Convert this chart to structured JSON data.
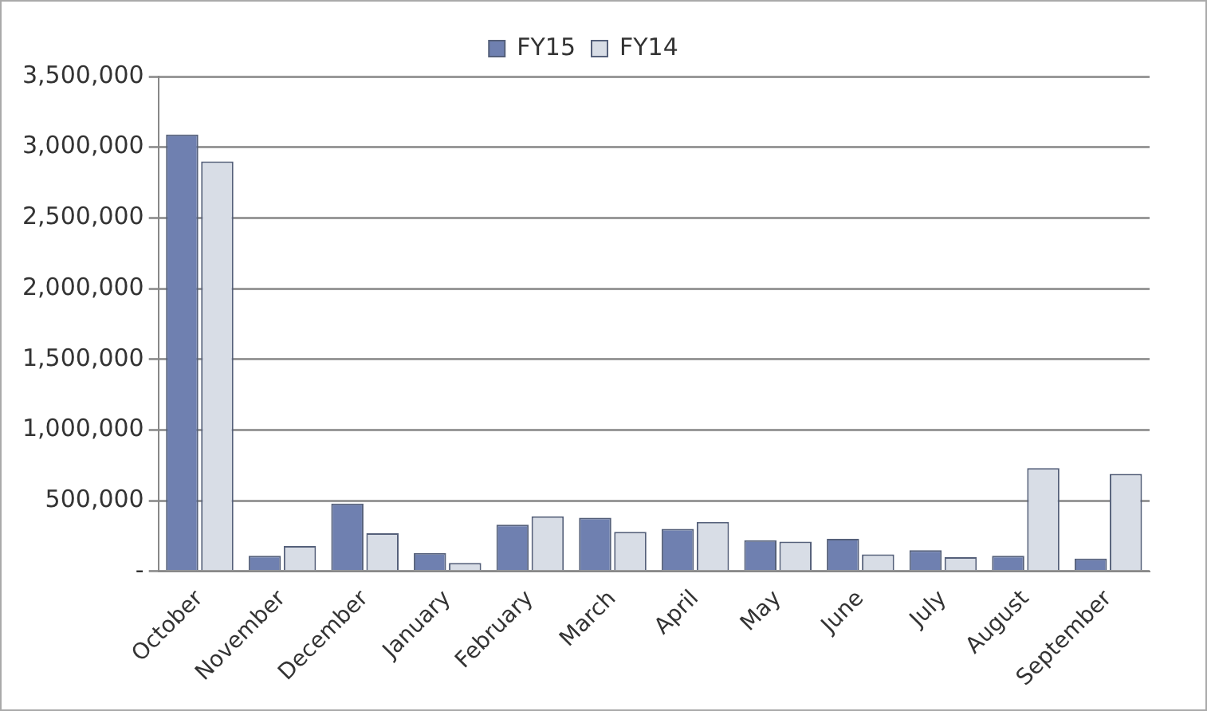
{
  "chart_data": {
    "type": "bar",
    "categories": [
      "October",
      "November",
      "December",
      "January",
      "February",
      "March",
      "April",
      "May",
      "June",
      "July",
      "August",
      "September"
    ],
    "series": [
      {
        "name": "FY15",
        "color": "#6f80b0",
        "values": [
          3090000,
          110000,
          480000,
          130000,
          330000,
          380000,
          300000,
          220000,
          230000,
          150000,
          110000,
          90000
        ]
      },
      {
        "name": "FY14",
        "color": "#d8dde6",
        "values": [
          2900000,
          180000,
          270000,
          60000,
          390000,
          280000,
          350000,
          210000,
          120000,
          100000,
          730000,
          690000
        ]
      }
    ],
    "ylim": [
      0,
      3500000
    ],
    "yticks": [
      {
        "value": 0,
        "label": "-"
      },
      {
        "value": 500000,
        "label": "500,000"
      },
      {
        "value": 1000000,
        "label": "1,000,000"
      },
      {
        "value": 1500000,
        "label": "1,500,000"
      },
      {
        "value": 2000000,
        "label": "2,000,000"
      },
      {
        "value": 2500000,
        "label": "2,500,000"
      },
      {
        "value": 3000000,
        "label": "3,000,000"
      },
      {
        "value": 3500000,
        "label": "3,500,000"
      }
    ],
    "grid": "y",
    "legend": "top"
  }
}
